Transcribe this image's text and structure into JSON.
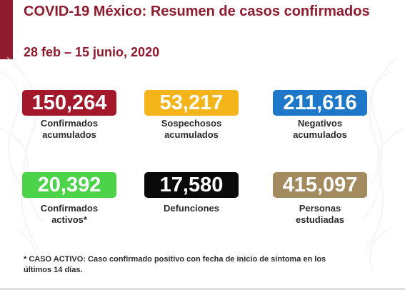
{
  "header": {
    "title": "COVID-19 México: Resumen de casos confirmados",
    "date_range": "28 feb – 15 junio, 2020"
  },
  "stats": [
    {
      "value": "150,264",
      "label_line1": "Confirmados",
      "label_line2": "acumulados",
      "color": "#a3182a"
    },
    {
      "value": "53,217",
      "label_line1": "Sospechosos",
      "label_line2": "acumulados",
      "color": "#f4b41a"
    },
    {
      "value": "211,616",
      "label_line1": "Negativos",
      "label_line2": "acumulados",
      "color": "#1e77c9"
    },
    {
      "value": "20,392",
      "label_line1": "Confirmados",
      "label_line2": "activos*",
      "color": "#4cd34a"
    },
    {
      "value": "17,580",
      "label_line1": "Defunciones",
      "label_line2": "",
      "color": "#0a0a0a"
    },
    {
      "value": "415,097",
      "label_line1": "Personas",
      "label_line2": "estudiadas",
      "color": "#a48a5f"
    }
  ],
  "footnote": {
    "line1": "* CASO ACTIVO: Caso confirmado positivo con fecha de inicio de síntoma en los",
    "line2": "últimos 14 días."
  },
  "colors": {
    "accent": "#8e1b2e"
  }
}
